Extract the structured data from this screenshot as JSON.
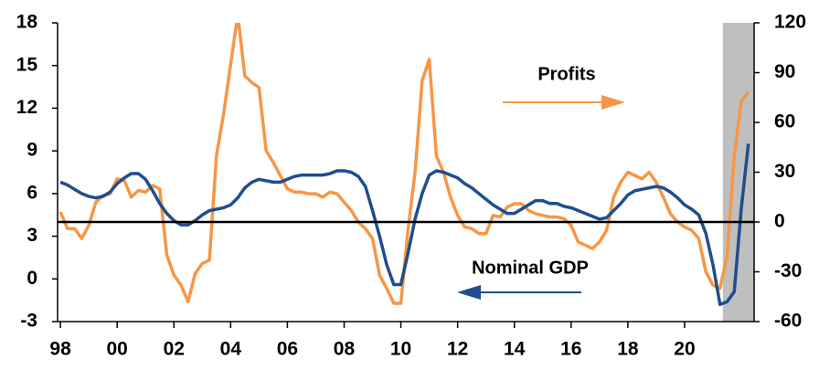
{
  "chart_data": {
    "type": "line",
    "annotations": [
      "Profits",
      "Nominal GDP"
    ],
    "x": [
      1998,
      1998.25,
      1998.5,
      1998.75,
      1999,
      1999.25,
      1999.5,
      1999.75,
      2000,
      2000.25,
      2000.5,
      2000.75,
      2001,
      2001.25,
      2001.5,
      2001.75,
      2002,
      2002.25,
      2002.5,
      2002.75,
      2003,
      2003.25,
      2003.5,
      2003.75,
      2004,
      2004.25,
      2004.5,
      2004.75,
      2005,
      2005.25,
      2005.5,
      2005.75,
      2006,
      2006.25,
      2006.5,
      2006.75,
      2007,
      2007.25,
      2007.5,
      2007.75,
      2008,
      2008.25,
      2008.5,
      2008.75,
      2009,
      2009.25,
      2009.5,
      2009.75,
      2010,
      2010.25,
      2010.5,
      2010.75,
      2011,
      2011.25,
      2011.5,
      2011.75,
      2012,
      2012.25,
      2012.5,
      2012.75,
      2013,
      2013.25,
      2013.5,
      2013.75,
      2014,
      2014.25,
      2014.5,
      2014.75,
      2015,
      2015.25,
      2015.5,
      2015.75,
      2016,
      2016.25,
      2016.5,
      2016.75,
      2017,
      2017.25,
      2017.5,
      2017.75,
      2018,
      2018.25,
      2018.5,
      2018.75,
      2019,
      2019.25,
      2019.5,
      2019.75,
      2020,
      2020.25,
      2020.5,
      2020.75,
      2021,
      2021.25,
      2021.5,
      2021.75,
      2022,
      2022.25
    ],
    "series": [
      {
        "name": "Nominal GDP",
        "color": "#1f4e8c",
        "axis": "y",
        "values": [
          6.8,
          6.6,
          6.3,
          6.0,
          5.8,
          5.7,
          5.8,
          6.1,
          6.7,
          7.1,
          7.4,
          7.4,
          7.0,
          6.2,
          5.3,
          4.6,
          4.1,
          3.8,
          3.8,
          4.1,
          4.5,
          4.8,
          4.9,
          5.0,
          5.2,
          5.7,
          6.4,
          6.8,
          7.0,
          6.9,
          6.8,
          6.8,
          7.0,
          7.2,
          7.3,
          7.3,
          7.3,
          7.3,
          7.4,
          7.6,
          7.6,
          7.5,
          7.2,
          6.5,
          4.8,
          3.0,
          1.0,
          -0.4,
          -0.4,
          1.8,
          4.2,
          6.0,
          7.3,
          7.6,
          7.5,
          7.3,
          7.1,
          6.7,
          6.4,
          6.0,
          5.6,
          5.2,
          4.9,
          4.6,
          4.6,
          4.9,
          5.2,
          5.5,
          5.5,
          5.3,
          5.3,
          5.1,
          5.0,
          4.8,
          4.6,
          4.4,
          4.2,
          4.3,
          4.8,
          5.3,
          5.9,
          6.2,
          6.3,
          6.4,
          6.5,
          6.4,
          6.1,
          5.7,
          5.2,
          4.9,
          4.5,
          3.2,
          1.0,
          -1.8,
          -1.6,
          -0.9,
          5.0,
          9.5
        ]
      },
      {
        "name": "Profits",
        "color": "#f79646",
        "axis": "y2",
        "values": [
          6,
          -4,
          -4,
          -10,
          -2,
          12,
          16,
          17,
          26,
          25,
          15,
          19,
          18,
          22,
          20,
          -20,
          -32,
          -38,
          -48,
          -31,
          -25,
          -23,
          40,
          65,
          95,
          125,
          88,
          84,
          81,
          43,
          36,
          28,
          20,
          18,
          18,
          17,
          17,
          15,
          18,
          17,
          12,
          7,
          0,
          -4,
          -10,
          -32,
          -40,
          -49,
          -49,
          -5,
          30,
          85,
          98,
          40,
          30,
          15,
          4,
          -3,
          -4,
          -7,
          -7,
          4,
          3,
          9,
          11,
          11,
          7,
          5,
          4,
          3,
          3,
          2,
          -2,
          -12,
          -14,
          -16,
          -12,
          -5,
          15,
          24,
          30,
          28,
          26,
          30,
          24,
          15,
          5,
          0,
          -3,
          -5,
          -10,
          -30,
          -38,
          -40,
          -20,
          40,
          73,
          78
        ]
      }
    ],
    "xlim": [
      1997.9,
      2022.45
    ],
    "xticks": [
      {
        "value": 1998,
        "label": "98"
      },
      {
        "value": 2000,
        "label": "00"
      },
      {
        "value": 2002,
        "label": "02"
      },
      {
        "value": 2004,
        "label": "04"
      },
      {
        "value": 2006,
        "label": "06"
      },
      {
        "value": 2008,
        "label": "08"
      },
      {
        "value": 2010,
        "label": "10"
      },
      {
        "value": 2012,
        "label": "12"
      },
      {
        "value": 2014,
        "label": "14"
      },
      {
        "value": 2016,
        "label": "16"
      },
      {
        "value": 2018,
        "label": "18"
      },
      {
        "value": 2020,
        "label": "20"
      }
    ],
    "ylim": [
      -3,
      18
    ],
    "yticks": [
      -3,
      0,
      3,
      6,
      9,
      12,
      15,
      18
    ],
    "y2lim": [
      -60,
      120
    ],
    "y2ticks": [
      -60,
      -30,
      0,
      30,
      60,
      90,
      120
    ],
    "shaded_region": [
      2021.35,
      2022.45
    ],
    "shade_color": "#bfbfbf",
    "reference_line": {
      "axis": "y2",
      "value": 0,
      "color": "#000000"
    }
  }
}
